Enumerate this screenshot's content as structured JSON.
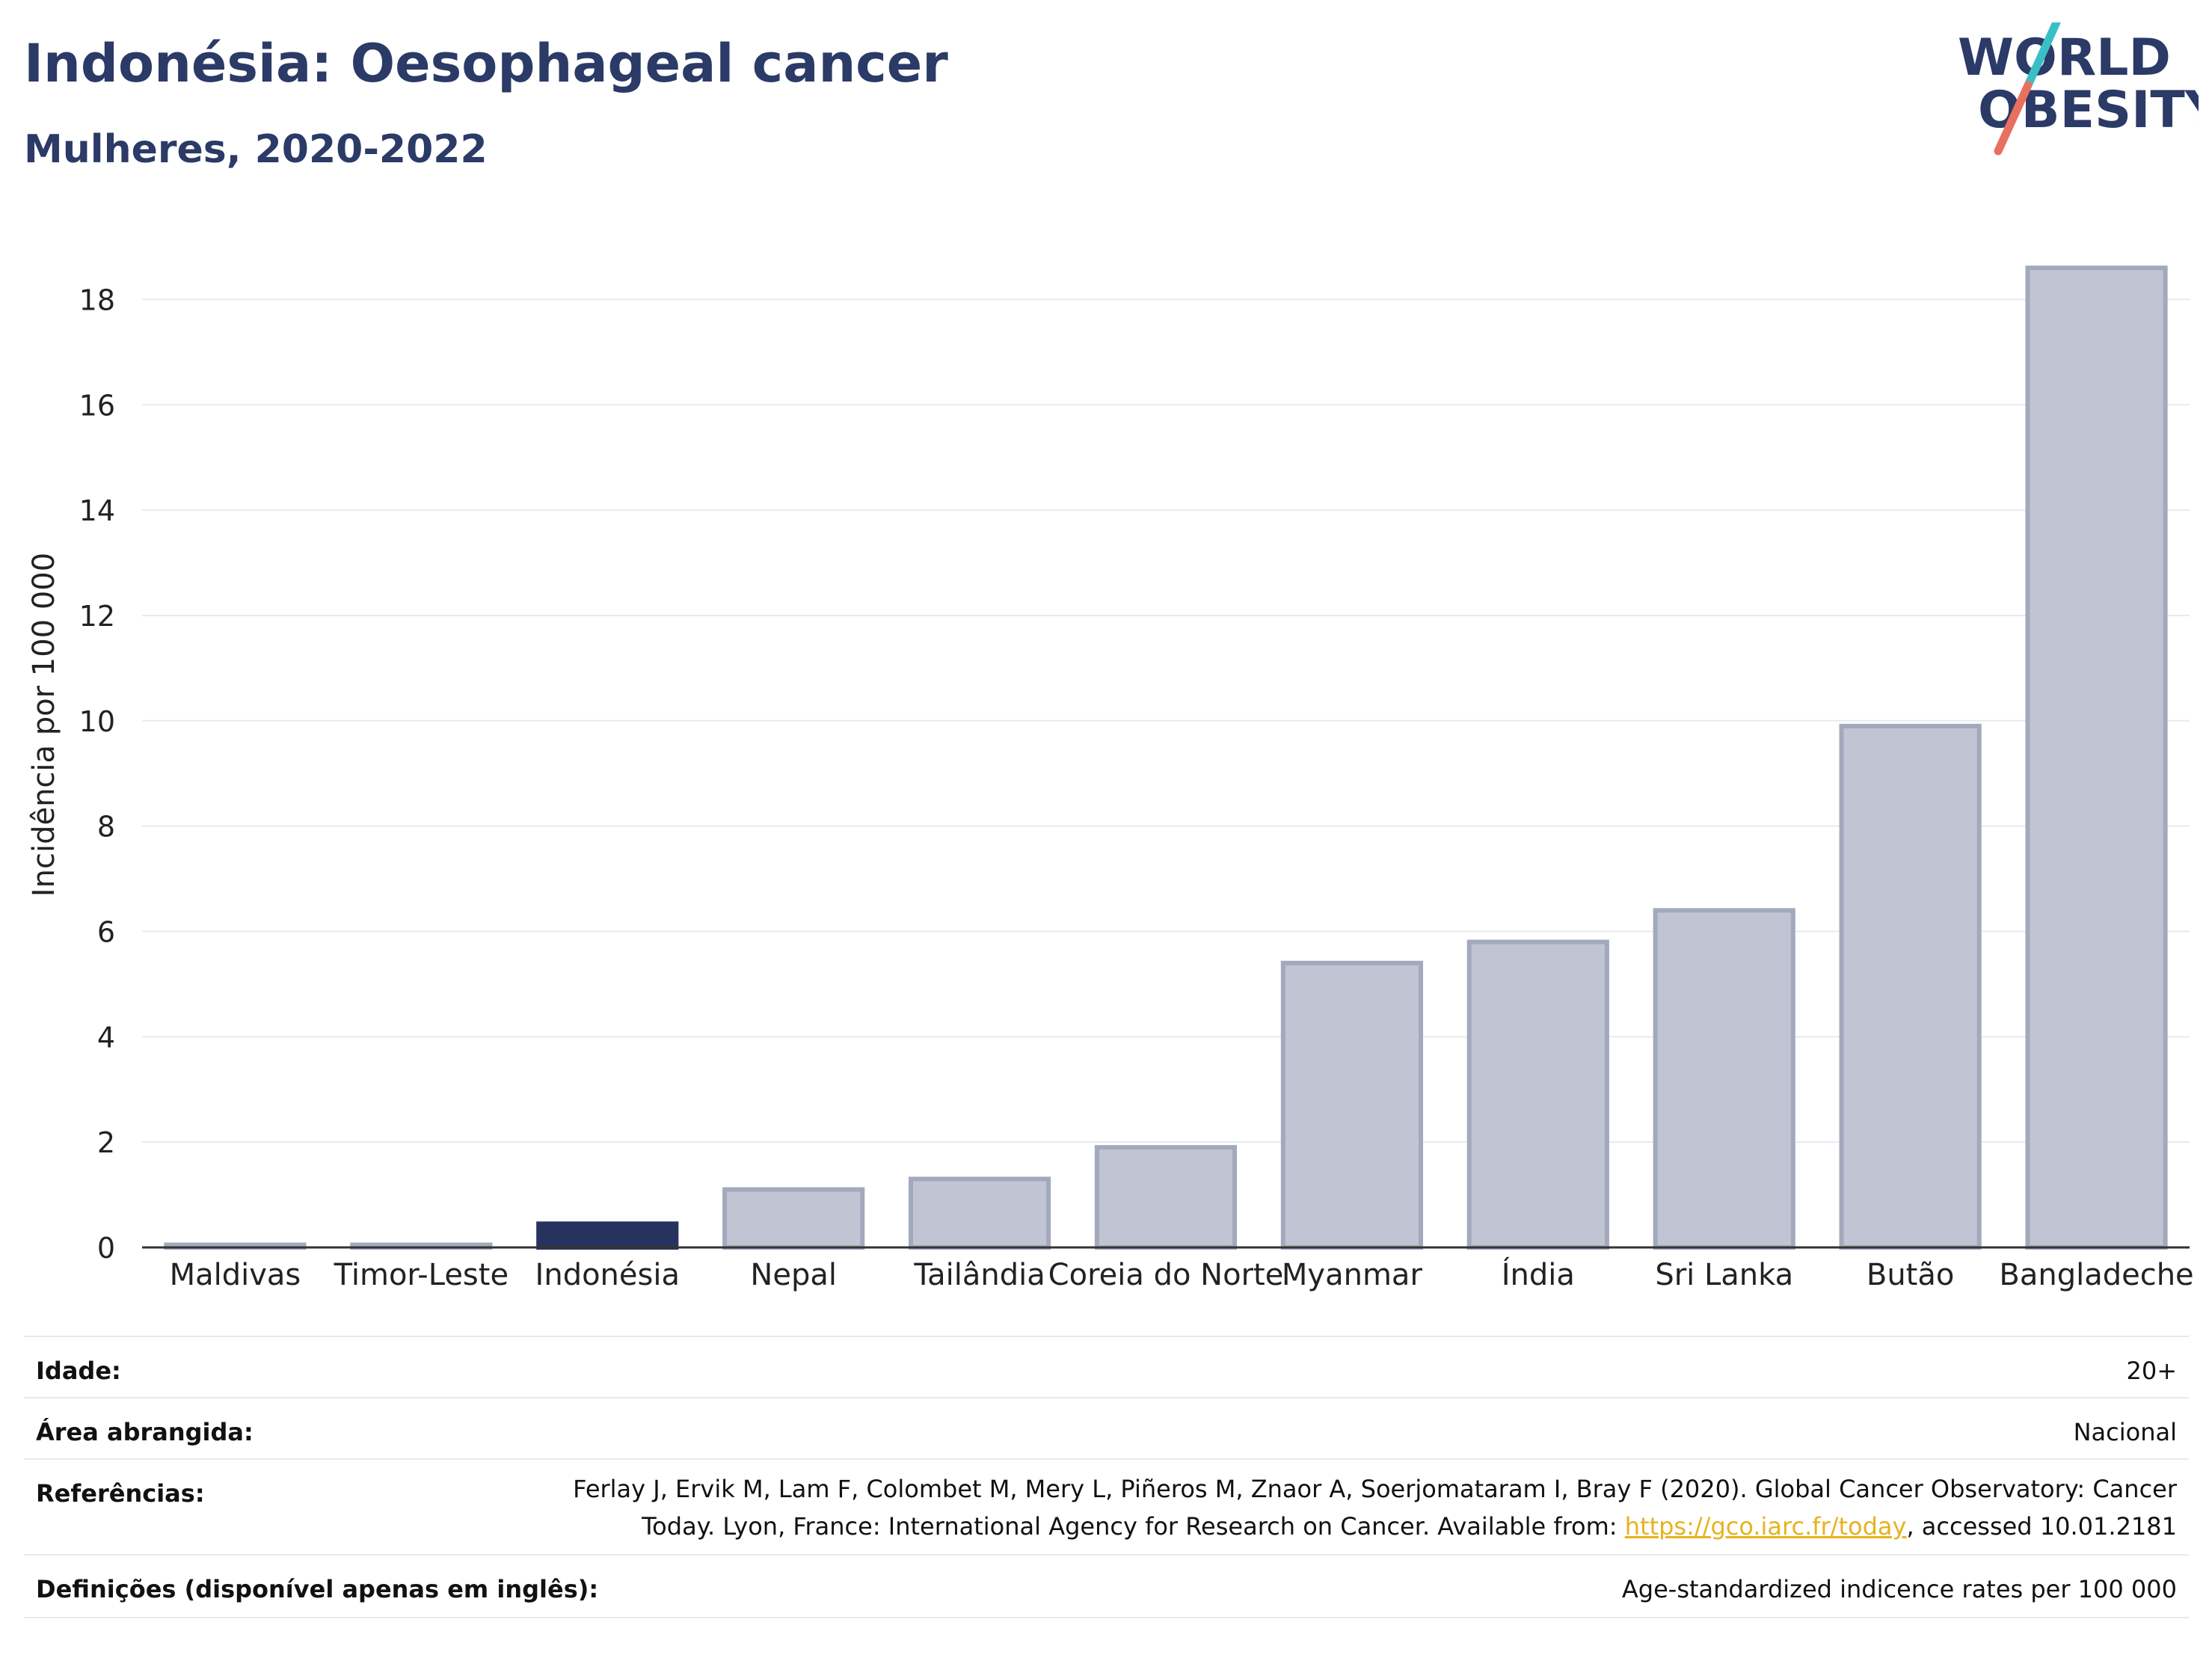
{
  "header": {
    "title": "Indonésia: Oesophageal cancer",
    "subtitle": "Mulheres, 2020-2022"
  },
  "logo": {
    "line1": "WORLD",
    "line2": "OBESITY",
    "accent_teal": "#3bbfc7",
    "accent_coral": "#e8705f",
    "text_color": "#2b3a66"
  },
  "chart_data": {
    "type": "bar",
    "ylabel": "Incidência por 100 000",
    "xlabel": "",
    "ylim": [
      0,
      19
    ],
    "yticks": [
      0,
      2,
      4,
      6,
      8,
      10,
      12,
      14,
      16,
      18
    ],
    "categories": [
      "Maldivas",
      "Timor-Leste",
      "Indonésia",
      "Nepal",
      "Tailândia",
      "Coreia do Norte",
      "Myanmar",
      "Índia",
      "Sri Lanka",
      "Butão",
      "Bangladeche"
    ],
    "values": [
      0.05,
      0.05,
      0.45,
      1.1,
      1.3,
      1.9,
      5.4,
      5.8,
      6.4,
      9.9,
      18.6
    ],
    "highlight": "Indonésia",
    "colors": {
      "bar": "#c0c4d3",
      "bar_edge": "#a3a9bd",
      "highlight": "#27335f",
      "grid": "#e8eaee"
    },
    "grid": true,
    "legend": "none"
  },
  "metadata": {
    "age_label": "Idade:",
    "age_value": "20+",
    "area_label": "Área abrangida:",
    "area_value": "Nacional",
    "ref_label": "Referências:",
    "ref_line1": "Ferlay J, Ervik M, Lam F, Colombet M, Mery L, Piñeros M, Znaor A, Soerjomataram I, Bray F (2020). Global Cancer Observatory: Cancer",
    "ref_line2_pre": "Today. Lyon, France: International Agency for Research on Cancer. Available from: ",
    "ref_link": "https://gco.iarc.fr/today",
    "ref_line2_post": ", accessed 10.01.2181",
    "def_label": "Definições (disponível apenas em inglês):",
    "def_value": "Age-standardized indicence rates per 100 000"
  }
}
